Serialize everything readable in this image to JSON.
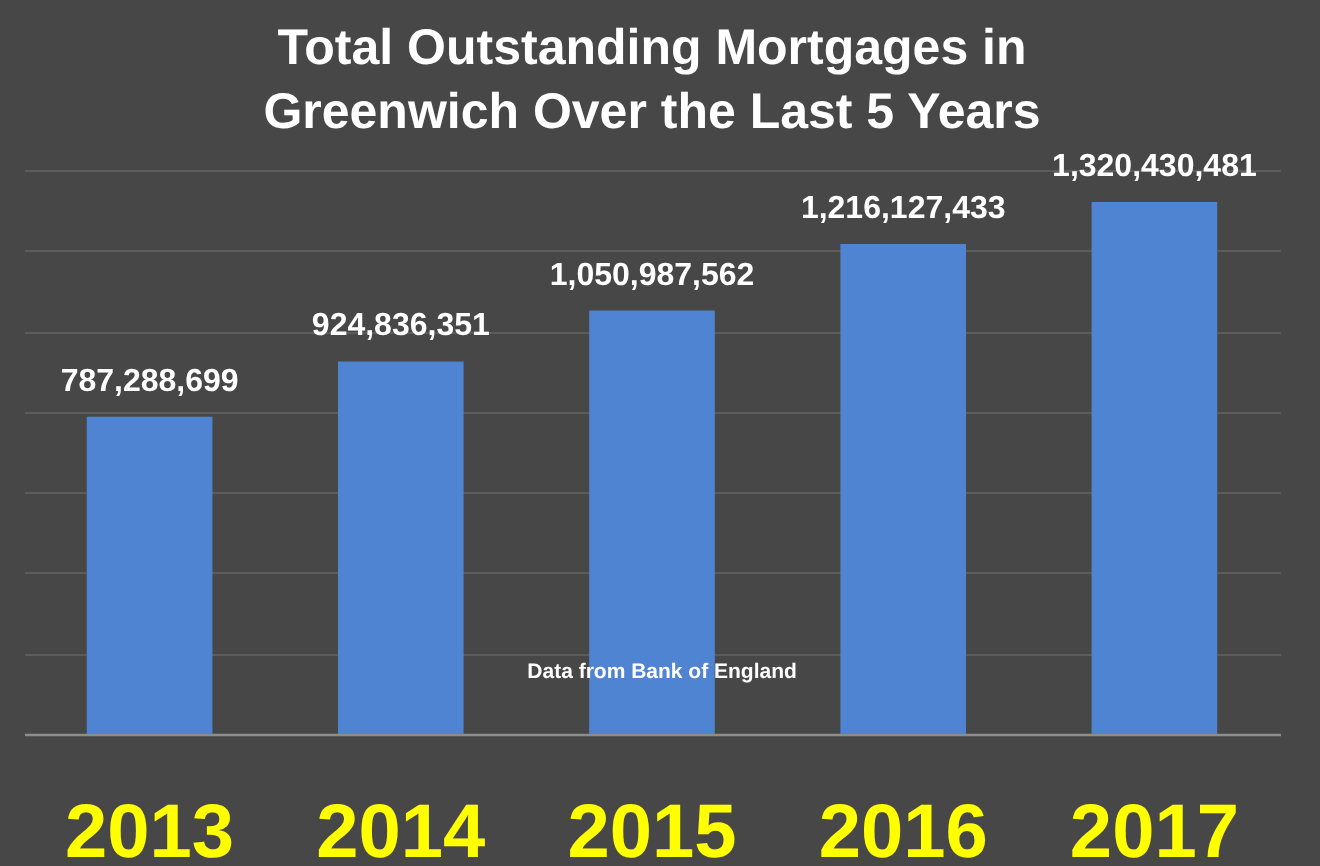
{
  "chart_data": {
    "type": "bar",
    "title": "Total Outstanding Mortgages in Greenwich Over the Last 5 Years",
    "categories": [
      "2013",
      "2014",
      "2015",
      "2016",
      "2017"
    ],
    "values": [
      787288699,
      924836351,
      1050987562,
      1216127433,
      1320430481
    ],
    "value_labels": [
      "787,288,699",
      "924,836,351",
      "1,050,987,562",
      "1,216,127,433",
      "1,320,430,481"
    ],
    "color": "#4f84d2",
    "grid": "y",
    "tick_labels": "x",
    "annotations": [
      "Data from Bank of England"
    ]
  }
}
